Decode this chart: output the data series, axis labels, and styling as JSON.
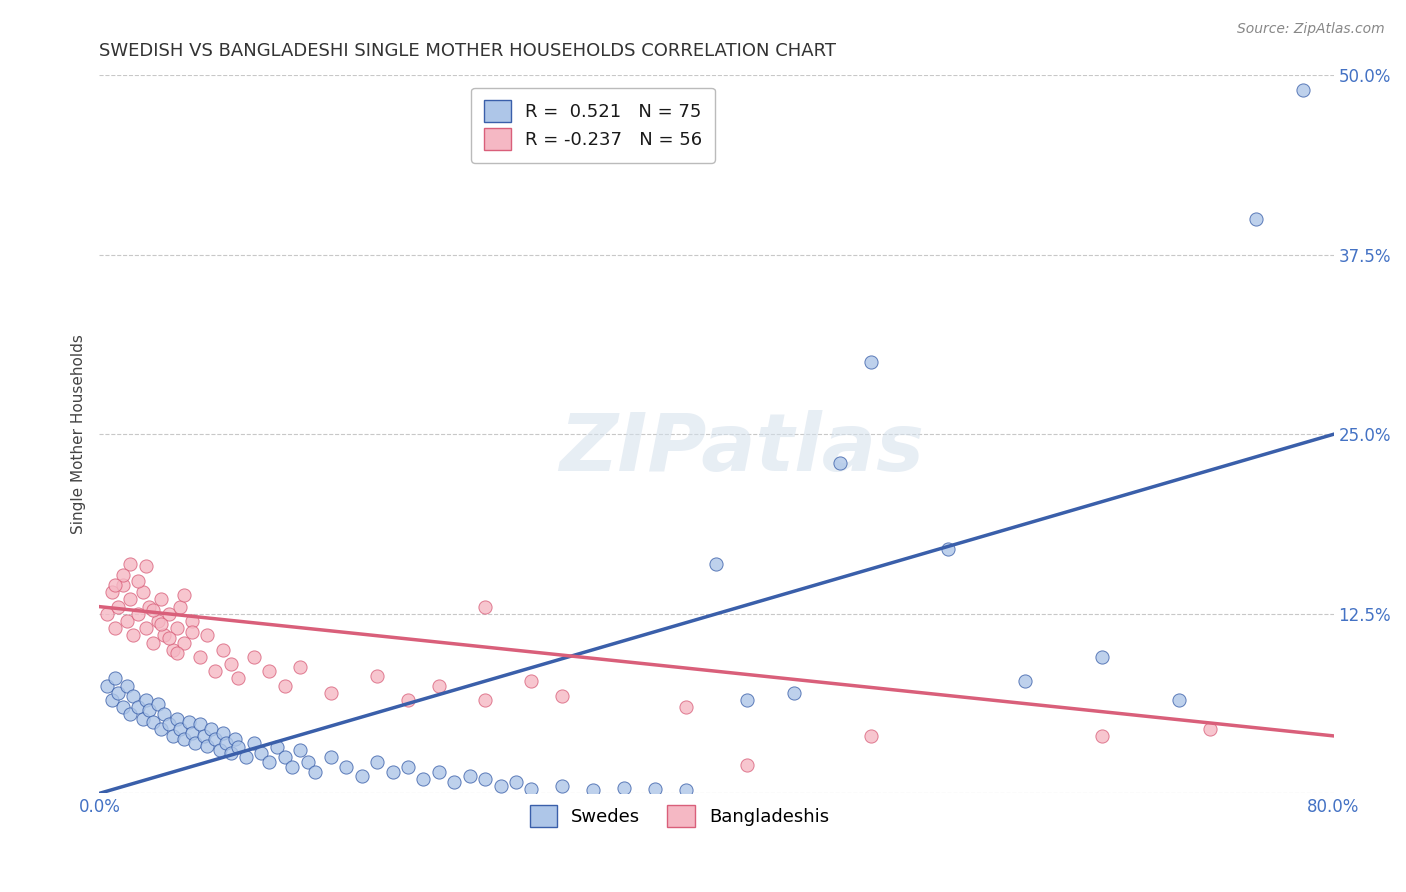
{
  "title": "SWEDISH VS BANGLADESHI SINGLE MOTHER HOUSEHOLDS CORRELATION CHART",
  "source": "Source: ZipAtlas.com",
  "ylabel": "Single Mother Households",
  "xlim": [
    0.0,
    0.8
  ],
  "ylim": [
    0.0,
    0.5
  ],
  "yticks": [
    0.0,
    0.125,
    0.25,
    0.375,
    0.5
  ],
  "xticks": [
    0.0,
    0.2,
    0.4,
    0.6,
    0.8
  ],
  "swedes_color": "#aec6e8",
  "bangladeshis_color": "#f5b8c4",
  "swedes_line_color": "#3a5faa",
  "bangladeshis_line_color": "#d95f7a",
  "R_swedes": 0.521,
  "N_swedes": 75,
  "R_bangladeshis": -0.237,
  "N_bangladeshis": 56,
  "legend_label_swedes": "Swedes",
  "legend_label_bangladeshis": "Bangladeshis",
  "watermark": "ZIPatlas",
  "title_fontsize": 13,
  "axis_color": "#4472c4",
  "grid_color": "#c8c8c8",
  "swedes_x": [
    0.005,
    0.008,
    0.01,
    0.012,
    0.015,
    0.018,
    0.02,
    0.022,
    0.025,
    0.028,
    0.03,
    0.032,
    0.035,
    0.038,
    0.04,
    0.042,
    0.045,
    0.048,
    0.05,
    0.052,
    0.055,
    0.058,
    0.06,
    0.062,
    0.065,
    0.068,
    0.07,
    0.072,
    0.075,
    0.078,
    0.08,
    0.082,
    0.085,
    0.088,
    0.09,
    0.095,
    0.1,
    0.105,
    0.11,
    0.115,
    0.12,
    0.125,
    0.13,
    0.135,
    0.14,
    0.15,
    0.16,
    0.17,
    0.18,
    0.19,
    0.2,
    0.21,
    0.22,
    0.23,
    0.24,
    0.25,
    0.26,
    0.27,
    0.28,
    0.3,
    0.32,
    0.34,
    0.36,
    0.38,
    0.4,
    0.42,
    0.45,
    0.48,
    0.5,
    0.55,
    0.6,
    0.65,
    0.7,
    0.75,
    0.78
  ],
  "swedes_y": [
    0.075,
    0.065,
    0.08,
    0.07,
    0.06,
    0.075,
    0.055,
    0.068,
    0.06,
    0.052,
    0.065,
    0.058,
    0.05,
    0.062,
    0.045,
    0.055,
    0.048,
    0.04,
    0.052,
    0.045,
    0.038,
    0.05,
    0.042,
    0.035,
    0.048,
    0.04,
    0.033,
    0.045,
    0.038,
    0.03,
    0.042,
    0.035,
    0.028,
    0.038,
    0.032,
    0.025,
    0.035,
    0.028,
    0.022,
    0.032,
    0.025,
    0.018,
    0.03,
    0.022,
    0.015,
    0.025,
    0.018,
    0.012,
    0.022,
    0.015,
    0.018,
    0.01,
    0.015,
    0.008,
    0.012,
    0.01,
    0.005,
    0.008,
    0.003,
    0.005,
    0.002,
    0.004,
    0.003,
    0.002,
    0.16,
    0.065,
    0.07,
    0.23,
    0.3,
    0.17,
    0.078,
    0.095,
    0.065,
    0.4,
    0.49
  ],
  "bangladeshis_x": [
    0.005,
    0.008,
    0.01,
    0.012,
    0.015,
    0.018,
    0.02,
    0.022,
    0.025,
    0.028,
    0.03,
    0.032,
    0.035,
    0.038,
    0.04,
    0.042,
    0.045,
    0.048,
    0.05,
    0.052,
    0.055,
    0.06,
    0.065,
    0.07,
    0.075,
    0.08,
    0.085,
    0.09,
    0.1,
    0.11,
    0.12,
    0.13,
    0.15,
    0.18,
    0.2,
    0.22,
    0.25,
    0.28,
    0.3,
    0.03,
    0.025,
    0.02,
    0.015,
    0.01,
    0.035,
    0.04,
    0.045,
    0.05,
    0.055,
    0.06,
    0.25,
    0.38,
    0.42,
    0.5,
    0.65,
    0.72
  ],
  "bangladeshis_y": [
    0.125,
    0.14,
    0.115,
    0.13,
    0.145,
    0.12,
    0.135,
    0.11,
    0.125,
    0.14,
    0.115,
    0.13,
    0.105,
    0.12,
    0.135,
    0.11,
    0.125,
    0.1,
    0.115,
    0.13,
    0.105,
    0.12,
    0.095,
    0.11,
    0.085,
    0.1,
    0.09,
    0.08,
    0.095,
    0.085,
    0.075,
    0.088,
    0.07,
    0.082,
    0.065,
    0.075,
    0.13,
    0.078,
    0.068,
    0.158,
    0.148,
    0.16,
    0.152,
    0.145,
    0.128,
    0.118,
    0.108,
    0.098,
    0.138,
    0.112,
    0.065,
    0.06,
    0.02,
    0.04,
    0.04,
    0.045
  ],
  "swedes_reg": [
    0.0,
    0.8,
    0.0,
    0.25
  ],
  "bangladeshis_reg": [
    0.0,
    0.8,
    0.13,
    0.04
  ],
  "dash_line": [
    0.0,
    0.8,
    0.0,
    0.25
  ]
}
